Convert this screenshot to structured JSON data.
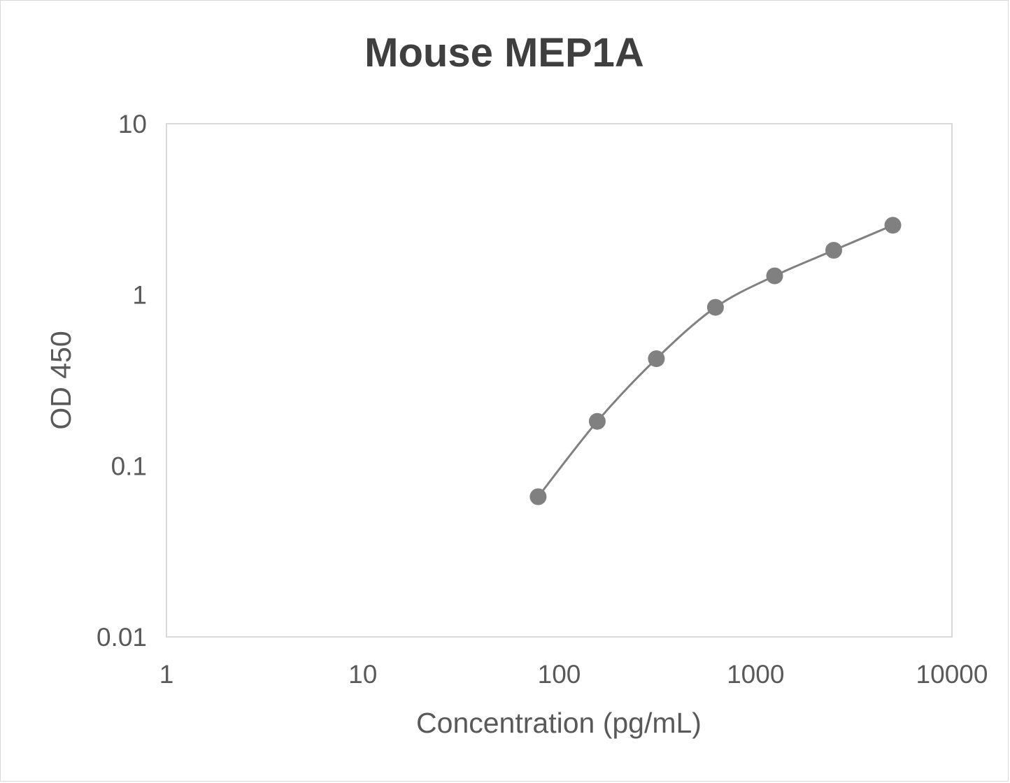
{
  "chart_data": {
    "type": "scatter",
    "title": "Mouse MEP1A",
    "xlabel": "Concentration (pg/mL)",
    "ylabel": "OD 450",
    "x_scale": "log",
    "y_scale": "log",
    "xlim": [
      1,
      10000
    ],
    "ylim": [
      0.01,
      10
    ],
    "x_ticks": [
      "1",
      "10",
      "100",
      "1000",
      "10000"
    ],
    "y_ticks": [
      "10",
      "1",
      "0.1",
      "0.01"
    ],
    "grid": false,
    "legend": "none",
    "line": "smoothed",
    "color": "#808080",
    "series": [
      {
        "x": [
          78.125,
          156.25,
          312.5,
          625,
          1250,
          2500,
          5000
        ],
        "y": [
          0.066,
          0.182,
          0.423,
          0.845,
          1.29,
          1.82,
          2.55
        ]
      }
    ]
  }
}
